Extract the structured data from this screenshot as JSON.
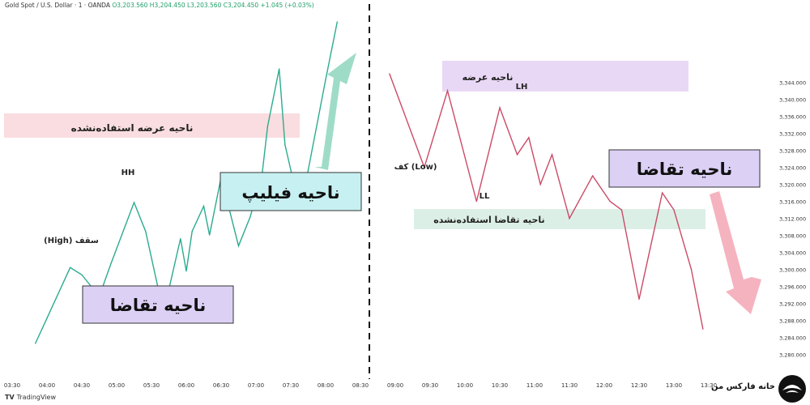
{
  "header": {
    "symbol": "Gold Spot / U.S. Dollar · 1 · OANDA",
    "ohlc": "O3,203.560  H3,204.450  L3,203.560  C3,204.450  +1.045 (+0.03%)"
  },
  "footer": {
    "tv_logo": "TV",
    "tv_label": "TradingView",
    "brand": "خانه فارکس من"
  },
  "colors": {
    "left_line": "#2bab8f",
    "right_line": "#cc4a66",
    "divider": "#111111",
    "supply_zone_left": "#f9dde0",
    "supply_zone_right": "#e9d8f5",
    "demand_zone_right": "#dcefe6",
    "box_cyan": "#c7f0f2",
    "box_purple": "#dcd0f5",
    "arrow_up": "#9fdcc8",
    "arrow_down": "#f5b3bf"
  },
  "chart_data": [
    {
      "type": "line",
      "panel": "left",
      "x": [
        "03:50",
        "04:00",
        "04:20",
        "04:30",
        "04:45",
        "04:55",
        "05:15",
        "05:25",
        "05:40",
        "05:45",
        "05:50",
        "05:55",
        "06:00",
        "06:05",
        "06:15",
        "06:20",
        "06:30",
        "06:45",
        "06:55",
        "07:05",
        "07:10",
        "07:20",
        "07:25",
        "07:35",
        "07:40",
        "07:45",
        "08:00",
        "08:10"
      ],
      "y": [
        3281,
        3288,
        3302,
        3300,
        3294,
        3303,
        3320,
        3312,
        3290,
        3296,
        3303,
        3310,
        3301,
        3312,
        3319,
        3311,
        3327,
        3308,
        3316,
        3327,
        3341,
        3357,
        3336,
        3322,
        3320,
        3329,
        3354,
        3370
      ],
      "xlabel": "",
      "ylabel": "",
      "xticks": [
        "03:30",
        "04:00",
        "04:30",
        "05:00",
        "05:30",
        "06:00",
        "06:30",
        "07:00",
        "07:30",
        "08:00",
        "08:30"
      ],
      "zones": [
        {
          "label": "ناحیه عرضه استفاده‌نشده",
          "kind": "supply"
        }
      ],
      "annotations": [
        {
          "label": "(High) سقف",
          "x": "04:30"
        },
        {
          "label": "HH",
          "x": "05:15"
        },
        {
          "label": "ناحیه فیلیپ",
          "kind": "box"
        },
        {
          "label": "ناحیه تقاضا",
          "kind": "box"
        }
      ]
    },
    {
      "type": "line",
      "panel": "right",
      "x": [
        "08:55",
        "09:25",
        "09:45",
        "10:10",
        "10:30",
        "10:45",
        "10:55",
        "11:05",
        "11:15",
        "11:30",
        "11:50",
        "12:05",
        "12:15",
        "12:30",
        "12:50",
        "13:00",
        "13:15",
        "13:25"
      ],
      "y": [
        3346,
        3324,
        3342,
        3316,
        3338,
        3327,
        3331,
        3320,
        3327,
        3312,
        3322,
        3316,
        3314,
        3293,
        3318,
        3314,
        3300,
        3286
      ],
      "xlabel": "",
      "ylabel": "",
      "xticks": [
        "09:00",
        "09:30",
        "10:00",
        "10:30",
        "11:00",
        "11:30",
        "12:00",
        "12:30",
        "13:00",
        "13:30"
      ],
      "yticks": [
        "3,344.000",
        "3,340.000",
        "3,336.000",
        "3,332.000",
        "3,328.000",
        "3,324.000",
        "3,320.000",
        "3,316.000",
        "3,312.000",
        "3,308.000",
        "3,304.000",
        "3,300.000",
        "3,296.000",
        "3,292.000",
        "3,288.000",
        "3,284.000",
        "3,280.000"
      ],
      "ylim": [
        3279,
        3350
      ],
      "zones": [
        {
          "label": "ناحیه عرضه",
          "kind": "supply"
        },
        {
          "label": "ناحیه تقاضا استفاده‌نشده",
          "kind": "demand"
        }
      ],
      "annotations": [
        {
          "label": "کف (Low)",
          "x": "09:25"
        },
        {
          "label": "LH",
          "x": "10:30"
        },
        {
          "label": "LL",
          "x": "10:10"
        },
        {
          "label": "ناحیه تقاضا",
          "kind": "box"
        }
      ]
    }
  ]
}
